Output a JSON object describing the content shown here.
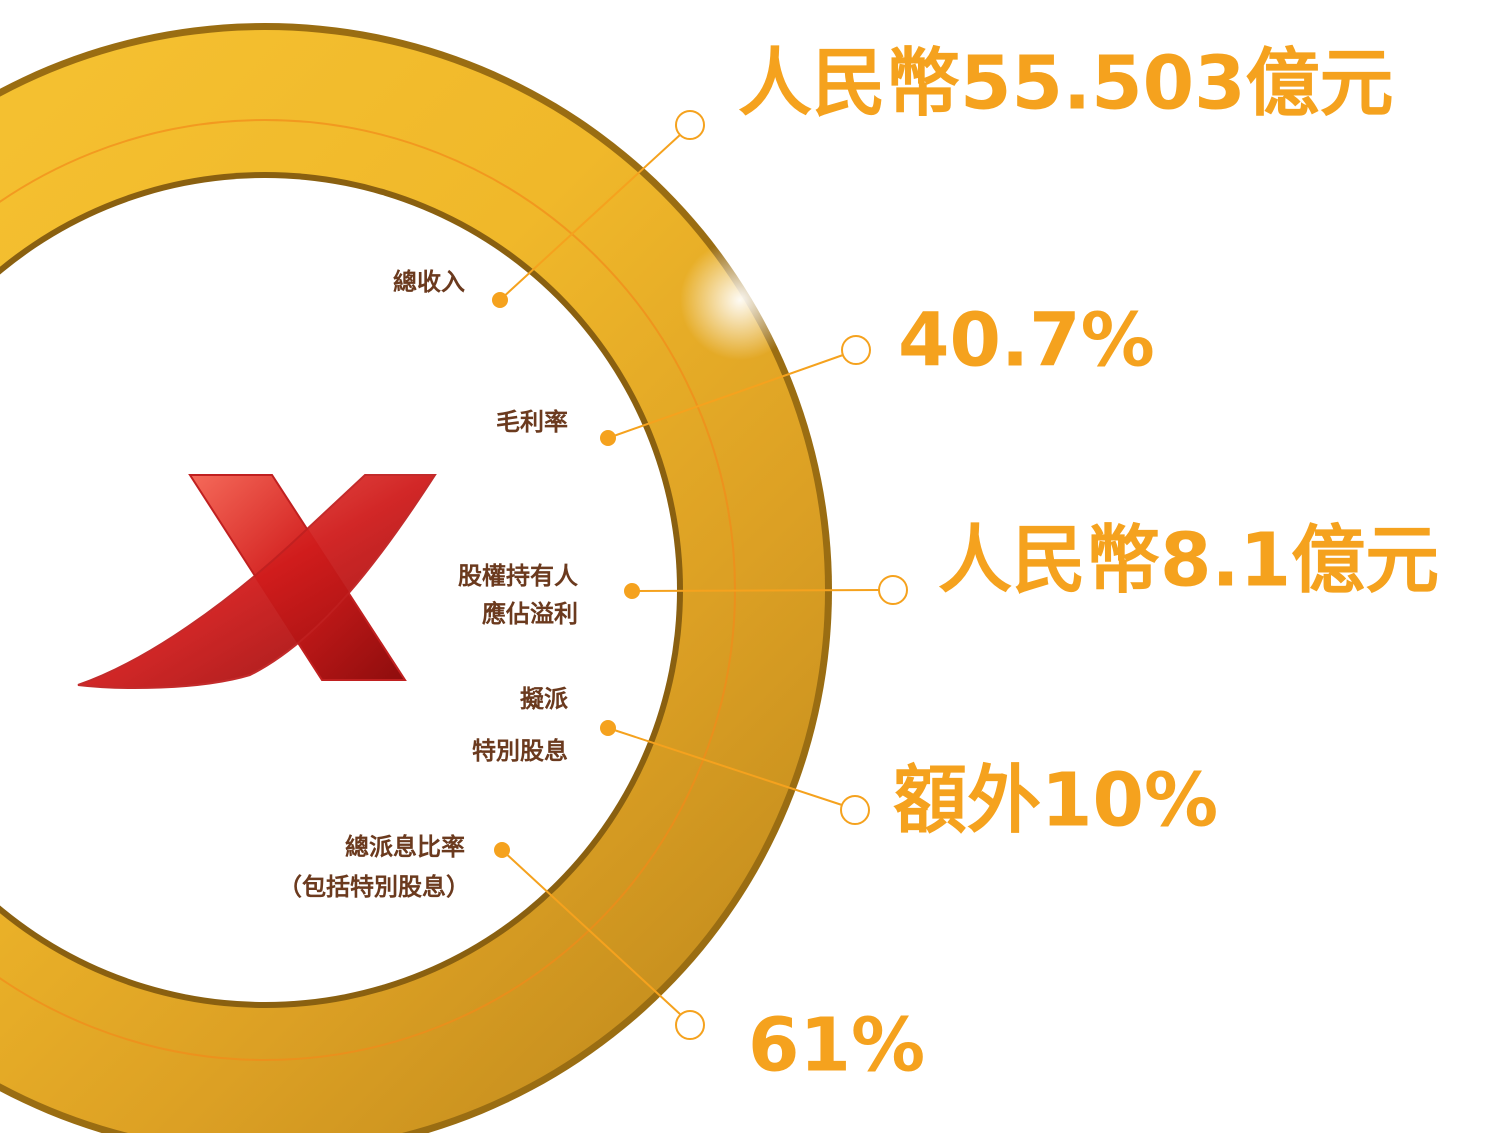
{
  "items": [
    {
      "label": [
        "總收入"
      ],
      "value": "人民幣55.503億元"
    },
    {
      "label": [
        "毛利率"
      ],
      "value": "40.7%"
    },
    {
      "label": [
        "股權持有人",
        "應佔溢利"
      ],
      "value": "人民幣8.1億元"
    },
    {
      "label": [
        "擬派",
        "特別股息"
      ],
      "value": "額外10%"
    },
    {
      "label": [
        "總派息比率",
        "（包括特別股息）"
      ],
      "value": "61%"
    }
  ]
}
